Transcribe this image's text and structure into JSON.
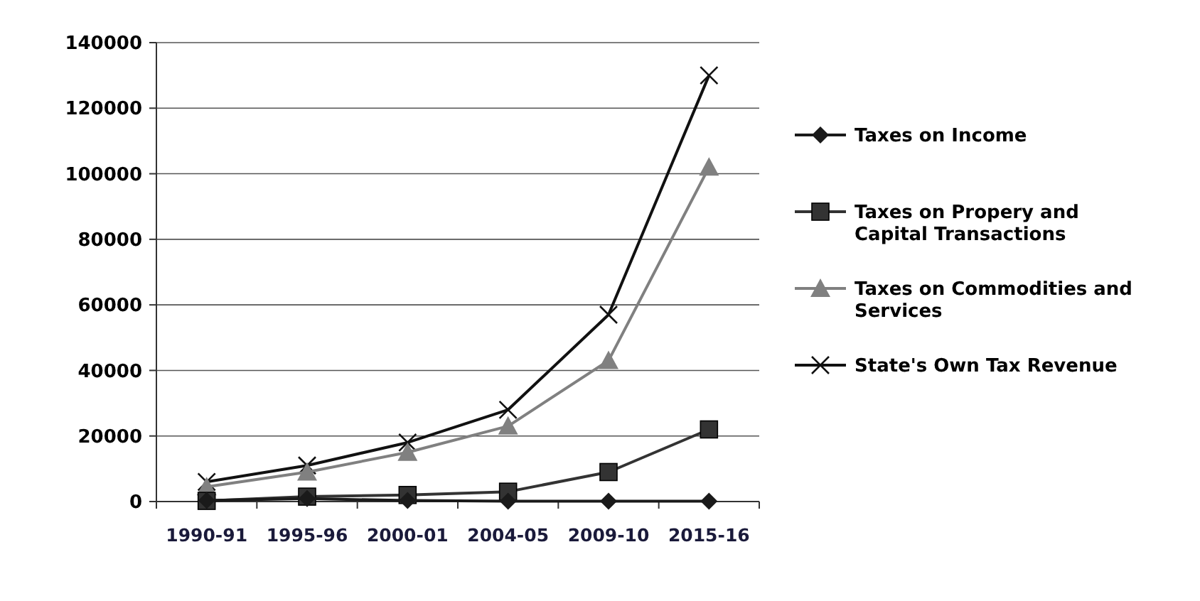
{
  "chart_data": {
    "type": "line",
    "categories": [
      "1990-91",
      "1995-96",
      "2000-01",
      "2004-05",
      "2009-10",
      "2015-16"
    ],
    "series": [
      {
        "name": "Taxes on Income",
        "color": "#1a1a1a",
        "marker": "diamond",
        "values": [
          300,
          900,
          300,
          100,
          100,
          100
        ]
      },
      {
        "name": "Taxes on Propery and Capital Transactions",
        "color": "#333333",
        "marker": "square",
        "values": [
          200,
          1500,
          2000,
          3000,
          9000,
          22000
        ]
      },
      {
        "name": "Taxes on Commodities and Services",
        "color": "#808080",
        "marker": "triangle",
        "values": [
          4500,
          9000,
          15000,
          23000,
          43000,
          102000
        ]
      },
      {
        "name": "State's Own Tax Revenue",
        "color": "#111111",
        "marker": "cross",
        "values": [
          6000,
          11000,
          18000,
          28000,
          57000,
          130000
        ]
      }
    ],
    "ylim": [
      0,
      140000
    ],
    "yticks": [
      0,
      20000,
      40000,
      60000,
      80000,
      100000,
      120000,
      140000
    ],
    "grid": "y",
    "legend": "right",
    "line_style": "solid"
  }
}
